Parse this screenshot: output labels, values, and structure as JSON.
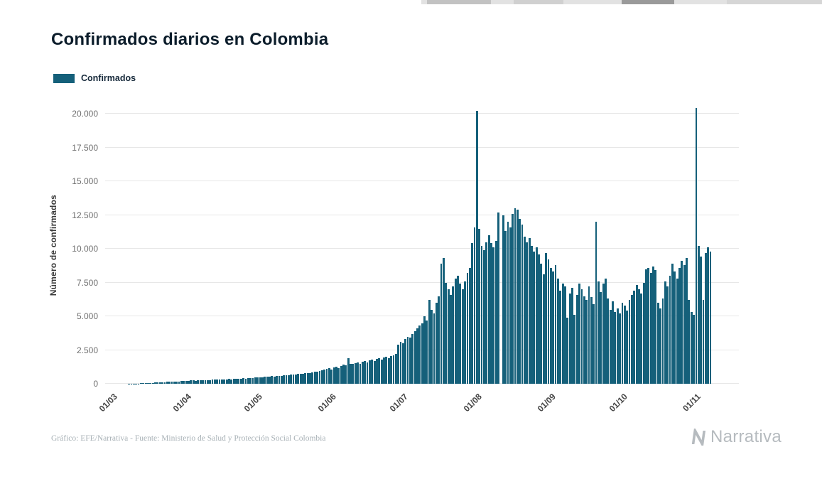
{
  "page": {
    "background": "#ffffff"
  },
  "header": {
    "title": "Confirmados diarios en Colombia"
  },
  "legend": {
    "label": "Confirmados",
    "swatch_color": "#15607a"
  },
  "chart_data": {
    "type": "bar",
    "title": "Confirmados diarios en Colombia",
    "series_name": "Confirmados",
    "xlabel": "",
    "ylabel": "Número de confirmados",
    "ylim": [
      0,
      20000
    ],
    "grid": true,
    "bar_color": "#15607a",
    "y_ticks": [
      0,
      2500,
      5000,
      7500,
      10000,
      12500,
      15000,
      17500,
      20000
    ],
    "y_tick_labels": [
      "0",
      "2.500",
      "5.000",
      "7.500",
      "10.000",
      "12.500",
      "15.000",
      "17.500",
      "20.000"
    ],
    "x_ticks": [
      {
        "label": "01/03",
        "index": 0
      },
      {
        "label": "01/04",
        "index": 31
      },
      {
        "label": "01/05",
        "index": 61
      },
      {
        "label": "01/06",
        "index": 92
      },
      {
        "label": "01/07",
        "index": 122
      },
      {
        "label": "01/08",
        "index": 153
      },
      {
        "label": "01/09",
        "index": 184
      },
      {
        "label": "01/10",
        "index": 214
      },
      {
        "label": "01/11",
        "index": 245
      },
      {
        "label": "",
        "index": 253
      }
    ],
    "values": [
      0,
      0,
      0,
      0,
      0,
      1,
      1,
      2,
      4,
      6,
      9,
      13,
      18,
      24,
      30,
      35,
      45,
      55,
      65,
      75,
      85,
      95,
      105,
      115,
      125,
      135,
      145,
      155,
      165,
      175,
      185,
      200,
      215,
      230,
      210,
      240,
      250,
      235,
      260,
      270,
      255,
      280,
      290,
      275,
      300,
      310,
      295,
      320,
      335,
      315,
      340,
      350,
      330,
      360,
      375,
      355,
      385,
      400,
      380,
      410,
      425,
      440,
      460,
      480,
      465,
      500,
      520,
      505,
      540,
      560,
      545,
      580,
      600,
      585,
      620,
      650,
      630,
      670,
      700,
      680,
      720,
      750,
      730,
      780,
      810,
      790,
      840,
      880,
      920,
      960,
      1010,
      1060,
      1100,
      1150,
      1050,
      1200,
      1250,
      1150,
      1300,
      1400,
      1350,
      1900,
      1500,
      1450,
      1550,
      1600,
      1500,
      1650,
      1700,
      1600,
      1750,
      1800,
      1700,
      1850,
      1900,
      1800,
      1950,
      2000,
      1900,
      2050,
      2100,
      2200,
      2900,
      3100,
      3000,
      3300,
      3500,
      3400,
      3700,
      3900,
      4100,
      4300,
      4500,
      5000,
      4700,
      6200,
      5500,
      5200,
      6000,
      6500,
      8900,
      9300,
      7500,
      7000,
      6600,
      7200,
      7800,
      8000,
      7400,
      7000,
      7600,
      8200,
      8600,
      10400,
      11600,
      20200,
      11500,
      10200,
      9900,
      10500,
      11000,
      10400,
      10100,
      10600,
      12700,
      0,
      12500,
      11300,
      12000,
      11600,
      12600,
      13000,
      12900,
      12200,
      11800,
      10900,
      10500,
      10800,
      10200,
      9800,
      10100,
      9600,
      8900,
      8100,
      9700,
      9200,
      8600,
      8300,
      8800,
      7800,
      6900,
      7400,
      7200,
      4900,
      6700,
      7100,
      5100,
      6600,
      7400,
      7000,
      6500,
      6200,
      7200,
      6400,
      5900,
      12000,
      7600,
      6800,
      7400,
      7800,
      6300,
      5500,
      6100,
      5300,
      5600,
      5200,
      6000,
      5800,
      5400,
      6200,
      6600,
      6900,
      7300,
      7000,
      6700,
      7500,
      8500,
      8600,
      8200,
      8700,
      8400,
      6000,
      5600,
      6300,
      7600,
      7200,
      8000,
      8900,
      8300,
      7800,
      8600,
      9100,
      8800,
      9300,
      6200,
      5300,
      5100,
      20400,
      10200,
      9400,
      6200,
      9700,
      10100,
      9800
    ]
  },
  "footer": {
    "credit": "Gráfico: EFE/Narrativa - Fuente: Ministerio de Salud y Protección Social Colombia",
    "logo_text": "Narrativa"
  }
}
